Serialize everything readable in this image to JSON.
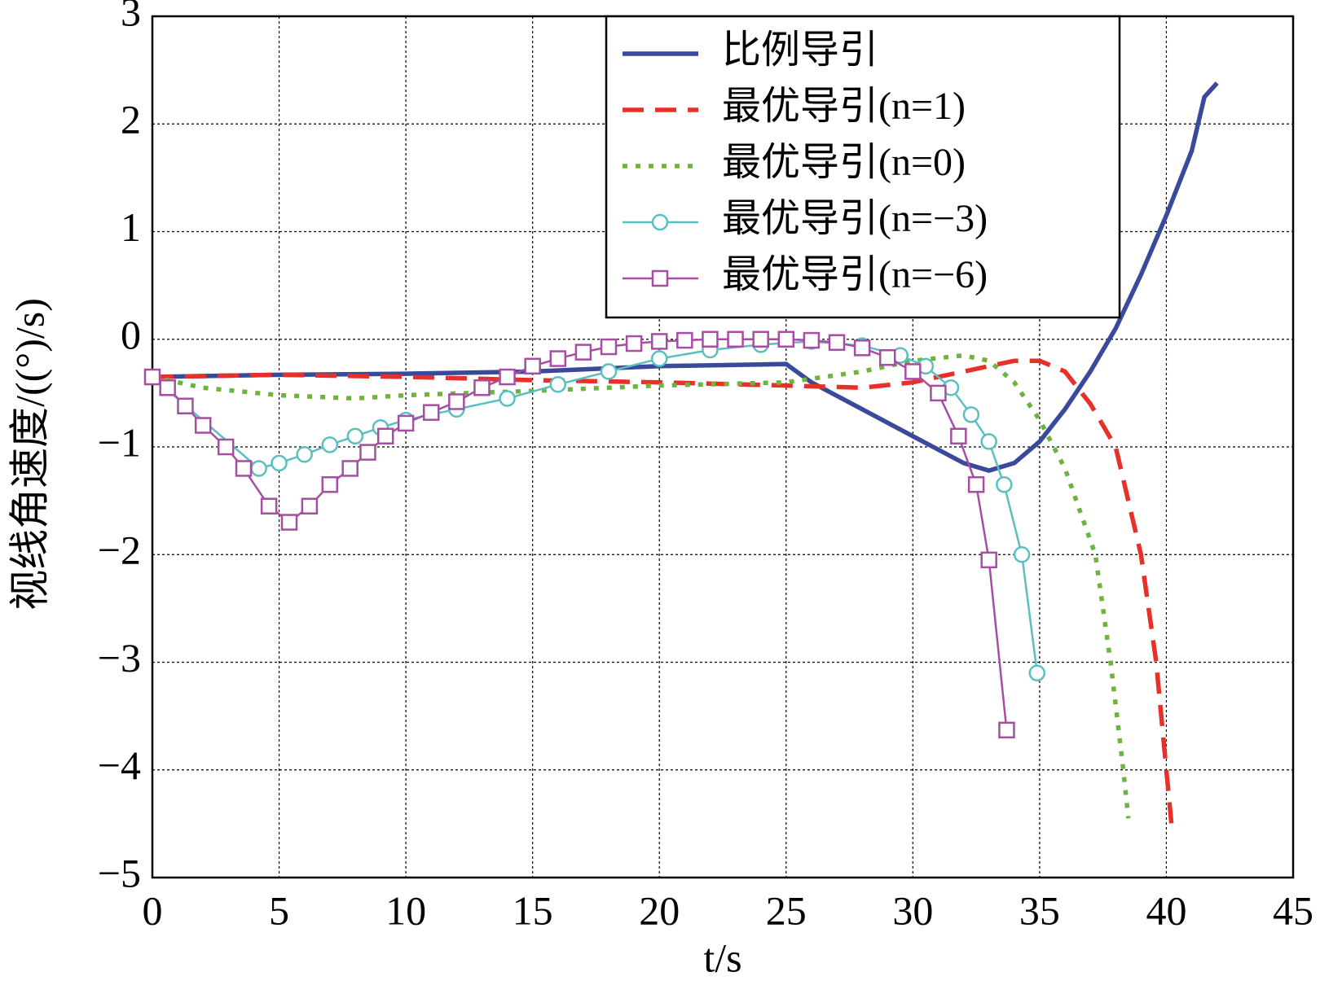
{
  "chart_data": {
    "type": "line",
    "xlabel": "t/s",
    "ylabel": "视线角速度/((°)/s)",
    "xlim": [
      0,
      45
    ],
    "ylim": [
      -5,
      3
    ],
    "xticks": [
      0,
      5,
      10,
      15,
      20,
      25,
      30,
      35,
      40,
      45
    ],
    "yticks": [
      {
        "value": -5,
        "label": "−5"
      },
      {
        "value": -4,
        "label": "−4"
      },
      {
        "value": -3,
        "label": "−3"
      },
      {
        "value": -2,
        "label": "−2"
      },
      {
        "value": -1,
        "label": "−1"
      },
      0,
      1,
      2,
      3
    ],
    "grid": true,
    "legend": "upper right",
    "series": [
      {
        "name": "比例导引",
        "color": "#3a4a9a",
        "style": "solid",
        "x": [
          0,
          5,
          10,
          15,
          20,
          25,
          26,
          28,
          30,
          32,
          33,
          34,
          35,
          36,
          37,
          38,
          39,
          40,
          41,
          41.5,
          42
        ],
        "values": [
          -0.35,
          -0.33,
          -0.32,
          -0.3,
          -0.25,
          -0.23,
          -0.4,
          -0.65,
          -0.9,
          -1.15,
          -1.22,
          -1.15,
          -0.95,
          -0.65,
          -0.3,
          0.1,
          0.6,
          1.15,
          1.75,
          2.25,
          2.38
        ]
      },
      {
        "name": "最优导引(n=1)",
        "color": "#e8302a",
        "style": "dashed",
        "x": [
          0,
          5,
          10,
          15,
          20,
          25,
          28,
          30,
          32,
          34,
          35,
          36,
          37,
          38,
          39,
          39.6,
          40,
          40.2
        ],
        "values": [
          -0.35,
          -0.33,
          -0.35,
          -0.38,
          -0.4,
          -0.43,
          -0.45,
          -0.4,
          -0.3,
          -0.2,
          -0.2,
          -0.3,
          -0.6,
          -1.0,
          -2.0,
          -3.0,
          -4.0,
          -4.5
        ]
      },
      {
        "name": "最优导引(n=0)",
        "color": "#6db33f",
        "style": "dotted",
        "x": [
          0,
          2,
          5,
          8,
          10,
          15,
          20,
          25,
          28,
          30,
          32,
          33,
          34,
          35,
          36,
          37.2,
          37.8,
          38.3,
          38.5
        ],
        "values": [
          -0.35,
          -0.45,
          -0.52,
          -0.55,
          -0.52,
          -0.48,
          -0.43,
          -0.4,
          -0.3,
          -0.2,
          -0.15,
          -0.2,
          -0.4,
          -0.75,
          -1.2,
          -2.0,
          -3.0,
          -4.0,
          -4.45
        ]
      },
      {
        "name": "最优导引(n=−3)",
        "color": "#5bbfc0",
        "style": "solid",
        "marker": "circle",
        "x": [
          0,
          4.2,
          5,
          6,
          7,
          8,
          9,
          10,
          12,
          14,
          16,
          18,
          20,
          22,
          24,
          26,
          28,
          29.5,
          30.5,
          31.5,
          32.3,
          33,
          33.6,
          34.3,
          34.9
        ],
        "values": [
          -0.35,
          -1.2,
          -1.15,
          -1.07,
          -0.98,
          -0.9,
          -0.82,
          -0.75,
          -0.65,
          -0.55,
          -0.42,
          -0.3,
          -0.18,
          -0.1,
          -0.05,
          -0.02,
          -0.06,
          -0.15,
          -0.25,
          -0.45,
          -0.7,
          -0.95,
          -1.35,
          -2.0,
          -3.1
        ]
      },
      {
        "name": "最优导引(n=−6)",
        "color": "#a64ea4",
        "style": "solid",
        "marker": "square",
        "x": [
          0,
          0.6,
          1.3,
          2,
          2.9,
          3.6,
          4.6,
          5.4,
          6.2,
          7,
          7.8,
          8.5,
          9.2,
          10,
          11,
          12,
          13,
          14,
          15,
          16,
          17,
          18,
          19,
          20,
          21,
          22,
          23,
          24,
          25,
          26,
          27,
          28,
          29,
          30,
          31,
          31.8,
          32.5,
          33,
          33.7
        ],
        "values": [
          -0.35,
          -0.45,
          -0.62,
          -0.8,
          -1.0,
          -1.2,
          -1.55,
          -1.7,
          -1.55,
          -1.35,
          -1.2,
          -1.05,
          -0.9,
          -0.78,
          -0.68,
          -0.58,
          -0.45,
          -0.35,
          -0.25,
          -0.18,
          -0.12,
          -0.07,
          -0.04,
          -0.02,
          -0.01,
          0,
          0,
          0,
          0,
          -0.01,
          -0.03,
          -0.08,
          -0.17,
          -0.3,
          -0.5,
          -0.9,
          -1.35,
          -2.05,
          -3.63
        ]
      }
    ]
  }
}
